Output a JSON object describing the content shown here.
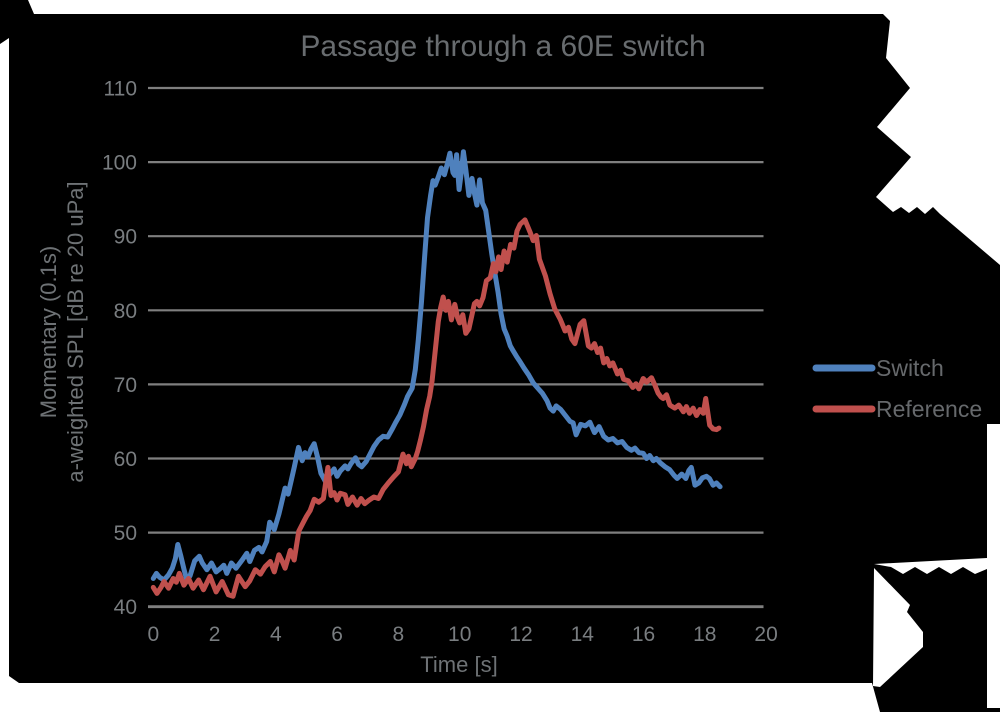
{
  "title": "Passage through a 60E switch",
  "x_axis": {
    "label": "Time [s]",
    "ticks": [
      0,
      2,
      4,
      6,
      8,
      10,
      12,
      14,
      16,
      18,
      20
    ]
  },
  "y_axis": {
    "label_line1": "Momentary (0.1s)",
    "label_line2": "a-weighted SPL [dB re 20 uPa]",
    "ticks": [
      110,
      100,
      90,
      80,
      70,
      60,
      50,
      40
    ]
  },
  "legend": {
    "items": [
      {
        "label": "Switch",
        "color": "#4f81bd"
      },
      {
        "label": "Reference",
        "color": "#c0504d"
      }
    ]
  },
  "colors": {
    "background": "#000000",
    "paper": "#ffffff",
    "gridline": "#7f7f7f",
    "text": "#6e7275"
  },
  "chart_data": {
    "type": "line",
    "title": "Passage through a 60E switch",
    "xlabel": "Time [s]",
    "ylabel": "Momentary (0.1s) a-weighted SPL [dB re 20 uPa]",
    "xlim": [
      0,
      20
    ],
    "ylim": [
      40,
      110
    ],
    "grid": true,
    "legend_position": "right",
    "xticks": [
      0,
      2,
      4,
      6,
      8,
      10,
      12,
      14,
      16,
      18,
      20
    ],
    "yticks": [
      110,
      100,
      90,
      80,
      70,
      60,
      50,
      40
    ],
    "series": [
      {
        "name": "Switch",
        "color": "#4f81bd",
        "points": [
          [
            0,
            43.8
          ],
          [
            0.1,
            44.5
          ],
          [
            0.2,
            44
          ],
          [
            0.35,
            43.6
          ],
          [
            0.5,
            44.3
          ],
          [
            0.62,
            45.2
          ],
          [
            0.72,
            46.5
          ],
          [
            0.8,
            48.4
          ],
          [
            0.9,
            46.8
          ],
          [
            1,
            45.1
          ],
          [
            1.1,
            43.5
          ],
          [
            1.2,
            44.2
          ],
          [
            1.35,
            46.2
          ],
          [
            1.5,
            46.8
          ],
          [
            1.6,
            45.9
          ],
          [
            1.75,
            45
          ],
          [
            1.9,
            45.9
          ],
          [
            2.05,
            44.7
          ],
          [
            2.2,
            45.2
          ],
          [
            2.3,
            45.6
          ],
          [
            2.4,
            44.5
          ],
          [
            2.55,
            45.9
          ],
          [
            2.7,
            45.2
          ],
          [
            2.9,
            46.3
          ],
          [
            3.05,
            47.2
          ],
          [
            3.15,
            46.1
          ],
          [
            3.3,
            47.6
          ],
          [
            3.45,
            48
          ],
          [
            3.55,
            47.4
          ],
          [
            3.7,
            48.8
          ],
          [
            3.8,
            51.4
          ],
          [
            3.95,
            50.4
          ],
          [
            4.1,
            52.5
          ],
          [
            4.3,
            56
          ],
          [
            4.4,
            55.2
          ],
          [
            4.5,
            57
          ],
          [
            4.6,
            58.8
          ],
          [
            4.74,
            61.5
          ],
          [
            4.86,
            59.7
          ],
          [
            4.95,
            60.8
          ],
          [
            5.05,
            60.2
          ],
          [
            5.15,
            61.3
          ],
          [
            5.25,
            62
          ],
          [
            5.36,
            60.2
          ],
          [
            5.47,
            58
          ],
          [
            5.55,
            57.4
          ],
          [
            5.63,
            56.8
          ],
          [
            5.75,
            57.8
          ],
          [
            5.9,
            58.6
          ],
          [
            6,
            57.6
          ],
          [
            6.1,
            58.3
          ],
          [
            6.26,
            59
          ],
          [
            6.35,
            58.6
          ],
          [
            6.45,
            59.3
          ],
          [
            6.6,
            60.1
          ],
          [
            6.7,
            59.2
          ],
          [
            6.8,
            58.9
          ],
          [
            6.95,
            59.6
          ],
          [
            7.1,
            60.8
          ],
          [
            7.2,
            61.6
          ],
          [
            7.35,
            62.5
          ],
          [
            7.5,
            63
          ],
          [
            7.65,
            62.9
          ],
          [
            7.8,
            64
          ],
          [
            7.9,
            64.8
          ],
          [
            8.05,
            65.9
          ],
          [
            8.2,
            67.3
          ],
          [
            8.3,
            68.4
          ],
          [
            8.45,
            69.5
          ],
          [
            8.55,
            72
          ],
          [
            8.65,
            76
          ],
          [
            8.75,
            81
          ],
          [
            8.85,
            87
          ],
          [
            8.95,
            92.5
          ],
          [
            9.05,
            95.5
          ],
          [
            9.13,
            97.5
          ],
          [
            9.2,
            96.9
          ],
          [
            9.3,
            98
          ],
          [
            9.4,
            99.2
          ],
          [
            9.5,
            98.3
          ],
          [
            9.6,
            99.8
          ],
          [
            9.68,
            101.2
          ],
          [
            9.78,
            98.6
          ],
          [
            9.84,
            98.2
          ],
          [
            9.9,
            101
          ],
          [
            9.98,
            96.3
          ],
          [
            10.05,
            98.5
          ],
          [
            10.12,
            101.4
          ],
          [
            10.2,
            99
          ],
          [
            10.3,
            95.5
          ],
          [
            10.4,
            97.8
          ],
          [
            10.48,
            95.8
          ],
          [
            10.56,
            94.2
          ],
          [
            10.65,
            97.6
          ],
          [
            10.74,
            94.5
          ],
          [
            10.85,
            93.5
          ],
          [
            10.95,
            90.5
          ],
          [
            11.05,
            87.5
          ],
          [
            11.15,
            85
          ],
          [
            11.25,
            82.5
          ],
          [
            11.35,
            79.5
          ],
          [
            11.45,
            77.5
          ],
          [
            11.55,
            76.5
          ],
          [
            11.65,
            75.2
          ],
          [
            11.75,
            74.5
          ],
          [
            11.85,
            73.8
          ],
          [
            11.95,
            73.2
          ],
          [
            12.1,
            72.2
          ],
          [
            12.25,
            71.3
          ],
          [
            12.4,
            70.2
          ],
          [
            12.55,
            69.5
          ],
          [
            12.7,
            68.8
          ],
          [
            12.85,
            67.8
          ],
          [
            12.95,
            66.8
          ],
          [
            13.05,
            66.4
          ],
          [
            13.15,
            67.1
          ],
          [
            13.3,
            66.6
          ],
          [
            13.45,
            65.8
          ],
          [
            13.6,
            65
          ],
          [
            13.7,
            64.8
          ],
          [
            13.8,
            63.2
          ],
          [
            13.95,
            64.6
          ],
          [
            14.1,
            64.4
          ],
          [
            14.25,
            64.9
          ],
          [
            14.4,
            63.5
          ],
          [
            14.55,
            64.3
          ],
          [
            14.7,
            63
          ],
          [
            14.85,
            62.5
          ],
          [
            15,
            62.7
          ],
          [
            15.15,
            62.1
          ],
          [
            15.3,
            62.3
          ],
          [
            15.45,
            61.5
          ],
          [
            15.6,
            61.1
          ],
          [
            15.72,
            61.4
          ],
          [
            15.85,
            60.8
          ],
          [
            15.99,
            60.7
          ],
          [
            16.1,
            60
          ],
          [
            16.2,
            60.4
          ],
          [
            16.32,
            59.7
          ],
          [
            16.42,
            60
          ],
          [
            16.55,
            59.4
          ],
          [
            16.7,
            58.9
          ],
          [
            16.85,
            58.5
          ],
          [
            17,
            57.7
          ],
          [
            17.1,
            57.3
          ],
          [
            17.25,
            57.9
          ],
          [
            17.38,
            57.3
          ],
          [
            17.48,
            58.4
          ],
          [
            17.56,
            58.8
          ],
          [
            17.68,
            56.4
          ],
          [
            17.8,
            56.7
          ],
          [
            17.92,
            57.4
          ],
          [
            18.05,
            57.6
          ],
          [
            18.15,
            57.3
          ],
          [
            18.27,
            56.4
          ],
          [
            18.38,
            56.7
          ],
          [
            18.5,
            56.2
          ]
        ]
      },
      {
        "name": "Reference",
        "color": "#c0504d",
        "points": [
          [
            0,
            42.6
          ],
          [
            0.12,
            41.8
          ],
          [
            0.25,
            42.6
          ],
          [
            0.35,
            43.4
          ],
          [
            0.5,
            42.5
          ],
          [
            0.65,
            43.8
          ],
          [
            0.75,
            43.3
          ],
          [
            0.85,
            44.5
          ],
          [
            1,
            42.9
          ],
          [
            1.15,
            43.8
          ],
          [
            1.3,
            42.5
          ],
          [
            1.48,
            43.6
          ],
          [
            1.64,
            42.3
          ],
          [
            1.85,
            44.1
          ],
          [
            2.05,
            42
          ],
          [
            2.25,
            43.4
          ],
          [
            2.45,
            41.6
          ],
          [
            2.6,
            41.4
          ],
          [
            2.78,
            44.1
          ],
          [
            3,
            42.7
          ],
          [
            3.15,
            43.5
          ],
          [
            3.33,
            45
          ],
          [
            3.5,
            44.4
          ],
          [
            3.65,
            45.4
          ],
          [
            3.82,
            46.1
          ],
          [
            3.95,
            44.7
          ],
          [
            4.1,
            47
          ],
          [
            4.2,
            46.2
          ],
          [
            4.3,
            45.2
          ],
          [
            4.47,
            47.6
          ],
          [
            4.6,
            46.3
          ],
          [
            4.75,
            50.2
          ],
          [
            4.9,
            51.4
          ],
          [
            5,
            52.2
          ],
          [
            5.12,
            53
          ],
          [
            5.25,
            54.5
          ],
          [
            5.4,
            54.1
          ],
          [
            5.55,
            54.6
          ],
          [
            5.7,
            58.8
          ],
          [
            5.8,
            55
          ],
          [
            5.9,
            55.4
          ],
          [
            6,
            54.4
          ],
          [
            6.1,
            55.3
          ],
          [
            6.26,
            55.1
          ],
          [
            6.35,
            53.8
          ],
          [
            6.5,
            54.8
          ],
          [
            6.65,
            53.7
          ],
          [
            6.78,
            54.6
          ],
          [
            6.9,
            53.9
          ],
          [
            7.05,
            54.4
          ],
          [
            7.2,
            54.8
          ],
          [
            7.35,
            54.6
          ],
          [
            7.5,
            55.8
          ],
          [
            7.67,
            56.7
          ],
          [
            7.84,
            57.5
          ],
          [
            8,
            58.2
          ],
          [
            8.15,
            60.6
          ],
          [
            8.26,
            59.3
          ],
          [
            8.33,
            60.3
          ],
          [
            8.42,
            58.9
          ],
          [
            8.55,
            60
          ],
          [
            8.63,
            61
          ],
          [
            8.72,
            62.5
          ],
          [
            8.82,
            64.3
          ],
          [
            8.92,
            66.6
          ],
          [
            9.02,
            68.4
          ],
          [
            9.1,
            70.5
          ],
          [
            9.2,
            74.5
          ],
          [
            9.3,
            78.5
          ],
          [
            9.38,
            80.4
          ],
          [
            9.46,
            81.8
          ],
          [
            9.55,
            80
          ],
          [
            9.63,
            81.2
          ],
          [
            9.73,
            78.7
          ],
          [
            9.84,
            80.8
          ],
          [
            9.93,
            79
          ],
          [
            10,
            78.3
          ],
          [
            10.1,
            79.4
          ],
          [
            10.2,
            76.9
          ],
          [
            10.3,
            77.5
          ],
          [
            10.4,
            79.4
          ],
          [
            10.48,
            80.9
          ],
          [
            10.56,
            81.2
          ],
          [
            10.65,
            80.6
          ],
          [
            10.76,
            81.7
          ],
          [
            10.87,
            84
          ],
          [
            11,
            84.4
          ],
          [
            11.1,
            86.3
          ],
          [
            11.18,
            85.2
          ],
          [
            11.27,
            87.2
          ],
          [
            11.35,
            85.5
          ],
          [
            11.45,
            88
          ],
          [
            11.55,
            86.5
          ],
          [
            11.66,
            88.9
          ],
          [
            11.77,
            88.4
          ],
          [
            11.87,
            90.7
          ],
          [
            11.97,
            91.6
          ],
          [
            12.13,
            92.2
          ],
          [
            12.3,
            90.5
          ],
          [
            12.4,
            89.4
          ],
          [
            12.5,
            90.1
          ],
          [
            12.6,
            86.9
          ],
          [
            12.8,
            84.6
          ],
          [
            12.95,
            82.2
          ],
          [
            13.1,
            80.2
          ],
          [
            13.28,
            78.8
          ],
          [
            13.44,
            77.2
          ],
          [
            13.55,
            77.7
          ],
          [
            13.66,
            76.1
          ],
          [
            13.76,
            75.5
          ],
          [
            13.93,
            78.1
          ],
          [
            14.05,
            78.6
          ],
          [
            14.2,
            75.2
          ],
          [
            14.3,
            74.9
          ],
          [
            14.4,
            75.5
          ],
          [
            14.5,
            74.3
          ],
          [
            14.6,
            74.9
          ],
          [
            14.7,
            72.9
          ],
          [
            14.8,
            73.5
          ],
          [
            14.9,
            72.5
          ],
          [
            15,
            72.9
          ],
          [
            15.15,
            71.4
          ],
          [
            15.25,
            71.9
          ],
          [
            15.35,
            70.7
          ],
          [
            15.5,
            70.5
          ],
          [
            15.65,
            69.6
          ],
          [
            15.75,
            70.1
          ],
          [
            15.85,
            69.4
          ],
          [
            15.99,
            70.8
          ],
          [
            16.1,
            70.3
          ],
          [
            16.26,
            70.9
          ],
          [
            16.38,
            69.8
          ],
          [
            16.48,
            68.8
          ],
          [
            16.57,
            68.3
          ],
          [
            16.64,
            68.1
          ],
          [
            16.75,
            68.6
          ],
          [
            16.86,
            67.2
          ],
          [
            17.02,
            66.8
          ],
          [
            17.15,
            67.2
          ],
          [
            17.3,
            66.3
          ],
          [
            17.4,
            67
          ],
          [
            17.5,
            66.1
          ],
          [
            17.62,
            66.8
          ],
          [
            17.73,
            65.8
          ],
          [
            17.84,
            66.6
          ],
          [
            17.95,
            66.1
          ],
          [
            18.03,
            68.1
          ],
          [
            18.16,
            64.5
          ],
          [
            18.27,
            64
          ],
          [
            18.38,
            63.9
          ],
          [
            18.46,
            64.1
          ]
        ]
      }
    ]
  }
}
